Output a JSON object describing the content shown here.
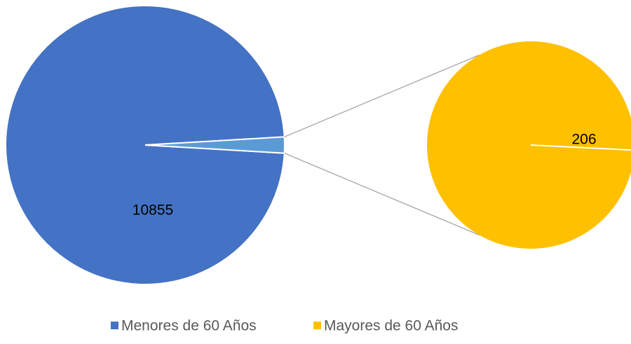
{
  "chart_data": {
    "type": "pie-of-pie",
    "categories": [
      "Menores de 60 Años",
      "Mayores de 60 Años"
    ],
    "values": [
      10855,
      206
    ],
    "colors": [
      "#4472c4",
      "#ffc000"
    ],
    "split_color": "#5b9bd5",
    "legend": "bottom"
  }
}
